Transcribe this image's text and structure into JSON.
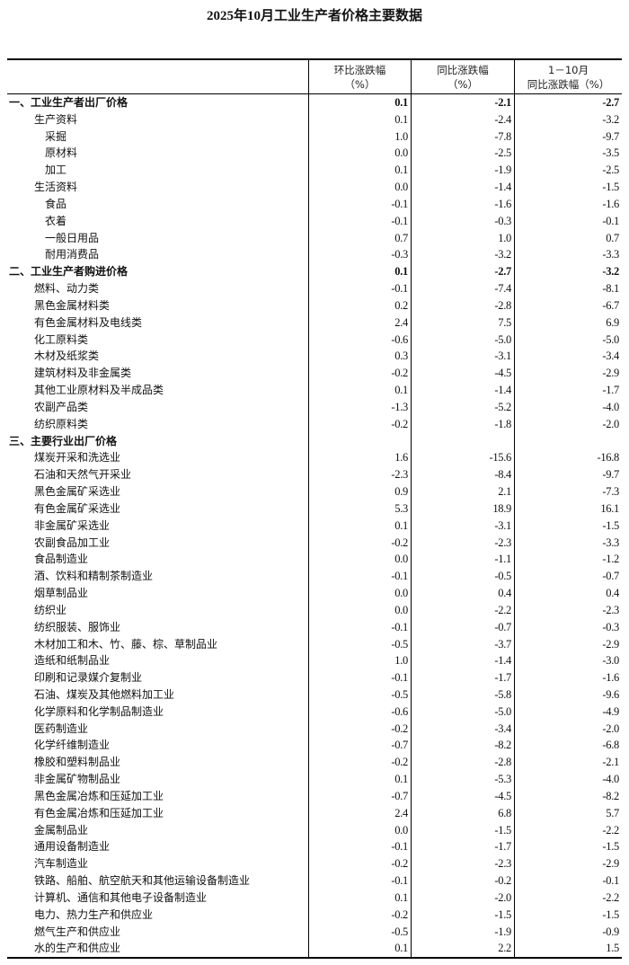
{
  "title": "2025年10月工业生产者价格主要数据",
  "columns": [
    {
      "line1": "",
      "line2": ""
    },
    {
      "line1": "环比涨跌幅",
      "line2": "（%）"
    },
    {
      "line1": "同比涨跌幅",
      "line2": "（%）"
    },
    {
      "line1": "1－10月",
      "line2": "同比涨跌幅（%）"
    }
  ],
  "rows": [
    {
      "label": "一、工业生产者出厂价格",
      "level": 0,
      "bold": true,
      "mom": "0.1",
      "yoy": "-2.1",
      "ytd": "-2.7"
    },
    {
      "label": "生产资料",
      "level": 1,
      "mom": "0.1",
      "yoy": "-2.4",
      "ytd": "-3.2"
    },
    {
      "label": "采掘",
      "level": 2,
      "mom": "1.0",
      "yoy": "-7.8",
      "ytd": "-9.7"
    },
    {
      "label": "原材料",
      "level": 2,
      "mom": "0.0",
      "yoy": "-2.5",
      "ytd": "-3.5"
    },
    {
      "label": "加工",
      "level": 2,
      "mom": "0.1",
      "yoy": "-1.9",
      "ytd": "-2.5"
    },
    {
      "label": "生活资料",
      "level": 1,
      "mom": "0.0",
      "yoy": "-1.4",
      "ytd": "-1.5"
    },
    {
      "label": "食品",
      "level": 2,
      "mom": "-0.1",
      "yoy": "-1.6",
      "ytd": "-1.6"
    },
    {
      "label": "衣着",
      "level": 2,
      "mom": "-0.1",
      "yoy": "-0.3",
      "ytd": "-0.1"
    },
    {
      "label": "一般日用品",
      "level": 2,
      "mom": "0.7",
      "yoy": "1.0",
      "ytd": "0.7"
    },
    {
      "label": "耐用消费品",
      "level": 2,
      "mom": "-0.3",
      "yoy": "-3.2",
      "ytd": "-3.3"
    },
    {
      "label": "二、工业生产者购进价格",
      "level": 0,
      "bold": true,
      "mom": "0.1",
      "yoy": "-2.7",
      "ytd": "-3.2"
    },
    {
      "label": "燃料、动力类",
      "level": 1,
      "mom": "-0.1",
      "yoy": "-7.4",
      "ytd": "-8.1"
    },
    {
      "label": "黑色金属材料类",
      "level": 1,
      "mom": "0.2",
      "yoy": "-2.8",
      "ytd": "-6.7"
    },
    {
      "label": "有色金属材料及电线类",
      "level": 1,
      "mom": "2.4",
      "yoy": "7.5",
      "ytd": "6.9"
    },
    {
      "label": "化工原料类",
      "level": 1,
      "mom": "-0.6",
      "yoy": "-5.0",
      "ytd": "-5.0"
    },
    {
      "label": "木材及纸浆类",
      "level": 1,
      "mom": "0.3",
      "yoy": "-3.1",
      "ytd": "-3.4"
    },
    {
      "label": "建筑材料及非金属类",
      "level": 1,
      "mom": "-0.2",
      "yoy": "-4.5",
      "ytd": "-2.9"
    },
    {
      "label": "其他工业原材料及半成品类",
      "level": 1,
      "mom": "0.1",
      "yoy": "-1.4",
      "ytd": "-1.7"
    },
    {
      "label": "农副产品类",
      "level": 1,
      "mom": "-1.3",
      "yoy": "-5.2",
      "ytd": "-4.0"
    },
    {
      "label": "纺织原料类",
      "level": 1,
      "mom": "-0.2",
      "yoy": "-1.8",
      "ytd": "-2.0"
    },
    {
      "label": "三、主要行业出厂价格",
      "level": 0,
      "bold": true,
      "mom": "",
      "yoy": "",
      "ytd": ""
    },
    {
      "label": "煤炭开采和洗选业",
      "level": 1,
      "mom": "1.6",
      "yoy": "-15.6",
      "ytd": "-16.8"
    },
    {
      "label": "石油和天然气开采业",
      "level": 1,
      "mom": "-2.3",
      "yoy": "-8.4",
      "ytd": "-9.7"
    },
    {
      "label": "黑色金属矿采选业",
      "level": 1,
      "mom": "0.9",
      "yoy": "2.1",
      "ytd": "-7.3"
    },
    {
      "label": "有色金属矿采选业",
      "level": 1,
      "mom": "5.3",
      "yoy": "18.9",
      "ytd": "16.1"
    },
    {
      "label": "非金属矿采选业",
      "level": 1,
      "mom": "0.1",
      "yoy": "-3.1",
      "ytd": "-1.5"
    },
    {
      "label": "农副食品加工业",
      "level": 1,
      "mom": "-0.2",
      "yoy": "-2.3",
      "ytd": "-3.3"
    },
    {
      "label": "食品制造业",
      "level": 1,
      "mom": "0.0",
      "yoy": "-1.1",
      "ytd": "-1.2"
    },
    {
      "label": "酒、饮料和精制茶制造业",
      "level": 1,
      "mom": "-0.1",
      "yoy": "-0.5",
      "ytd": "-0.7"
    },
    {
      "label": "烟草制品业",
      "level": 1,
      "mom": "0.0",
      "yoy": "0.4",
      "ytd": "0.4"
    },
    {
      "label": "纺织业",
      "level": 1,
      "mom": "0.0",
      "yoy": "-2.2",
      "ytd": "-2.3"
    },
    {
      "label": "纺织服装、服饰业",
      "level": 1,
      "mom": "-0.1",
      "yoy": "-0.7",
      "ytd": "-0.3"
    },
    {
      "label": "木材加工和木、竹、藤、棕、草制品业",
      "level": 1,
      "mom": "-0.5",
      "yoy": "-3.7",
      "ytd": "-2.9"
    },
    {
      "label": "造纸和纸制品业",
      "level": 1,
      "mom": "1.0",
      "yoy": "-1.4",
      "ytd": "-3.0"
    },
    {
      "label": "印刷和记录媒介复制业",
      "level": 1,
      "mom": "-0.1",
      "yoy": "-1.7",
      "ytd": "-1.6"
    },
    {
      "label": "石油、煤炭及其他燃料加工业",
      "level": 1,
      "mom": "-0.5",
      "yoy": "-5.8",
      "ytd": "-9.6"
    },
    {
      "label": "化学原料和化学制品制造业",
      "level": 1,
      "mom": "-0.6",
      "yoy": "-5.0",
      "ytd": "-4.9"
    },
    {
      "label": "医药制造业",
      "level": 1,
      "mom": "-0.2",
      "yoy": "-3.4",
      "ytd": "-2.0"
    },
    {
      "label": "化学纤维制造业",
      "level": 1,
      "mom": "-0.7",
      "yoy": "-8.2",
      "ytd": "-6.8"
    },
    {
      "label": "橡胶和塑料制品业",
      "level": 1,
      "mom": "-0.2",
      "yoy": "-2.8",
      "ytd": "-2.1"
    },
    {
      "label": "非金属矿物制品业",
      "level": 1,
      "mom": "0.1",
      "yoy": "-5.3",
      "ytd": "-4.0"
    },
    {
      "label": "黑色金属冶炼和压延加工业",
      "level": 1,
      "mom": "-0.7",
      "yoy": "-4.5",
      "ytd": "-8.2"
    },
    {
      "label": "有色金属冶炼和压延加工业",
      "level": 1,
      "mom": "2.4",
      "yoy": "6.8",
      "ytd": "5.7"
    },
    {
      "label": "金属制品业",
      "level": 1,
      "mom": "0.0",
      "yoy": "-1.5",
      "ytd": "-2.2"
    },
    {
      "label": "通用设备制造业",
      "level": 1,
      "mom": "-0.1",
      "yoy": "-1.7",
      "ytd": "-1.5"
    },
    {
      "label": "汽车制造业",
      "level": 1,
      "mom": "-0.2",
      "yoy": "-2.3",
      "ytd": "-2.9"
    },
    {
      "label": "铁路、船舶、航空航天和其他运输设备制造业",
      "level": 1,
      "mom": "-0.1",
      "yoy": "-0.2",
      "ytd": "-0.1"
    },
    {
      "label": "计算机、通信和其他电子设备制造业",
      "level": 1,
      "mom": "0.1",
      "yoy": "-2.0",
      "ytd": "-2.2"
    },
    {
      "label": "电力、热力生产和供应业",
      "level": 1,
      "mom": "-0.2",
      "yoy": "-1.5",
      "ytd": "-1.5"
    },
    {
      "label": "燃气生产和供应业",
      "level": 1,
      "mom": "-0.5",
      "yoy": "-1.9",
      "ytd": "-0.9"
    },
    {
      "label": "水的生产和供应业",
      "level": 1,
      "mom": "0.1",
      "yoy": "2.2",
      "ytd": "1.5"
    }
  ]
}
